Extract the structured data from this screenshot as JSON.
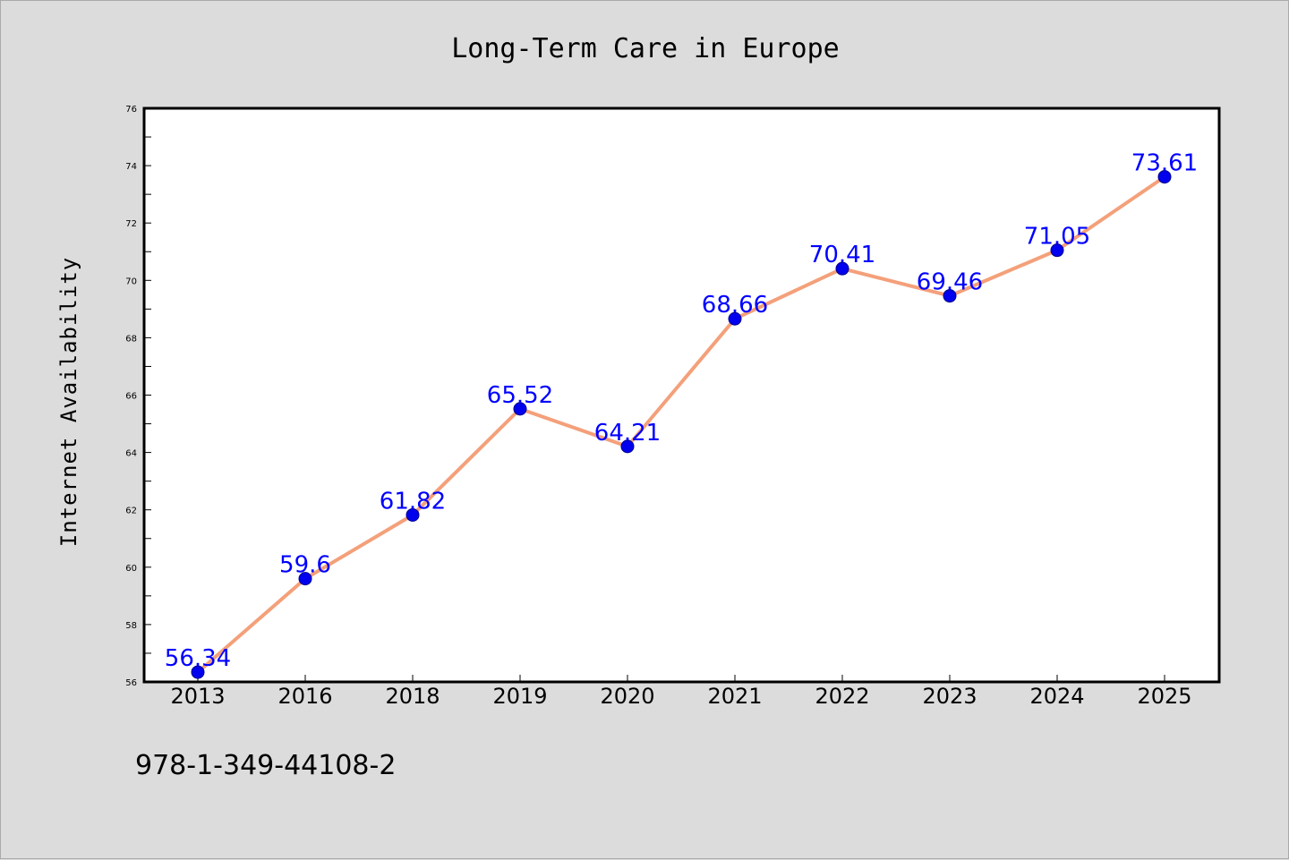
{
  "chart_data": {
    "type": "line",
    "title": "Long-Term Care in Europe",
    "xlabel": "",
    "ylabel": "Internet Availability",
    "categories": [
      "2013",
      "2016",
      "2018",
      "2019",
      "2020",
      "2021",
      "2022",
      "2023",
      "2024",
      "2025"
    ],
    "series": [
      {
        "values": [
          56.34,
          59.6,
          61.82,
          65.52,
          64.21,
          68.66,
          70.41,
          69.46,
          71.05,
          73.61
        ],
        "data_labels": [
          "56.34",
          "59.6",
          "61.82",
          "65.52",
          "64.21",
          "68.66",
          "70.41",
          "69.46",
          "71.05",
          "73.61"
        ]
      }
    ],
    "ylim": [
      56,
      76
    ],
    "yticks": [
      "56",
      "58",
      "60",
      "62",
      "64",
      "66",
      "68",
      "70",
      "72",
      "74",
      "76"
    ],
    "grid": false,
    "legend": "none",
    "colors": {
      "line": "#f4a07a",
      "marker": "#0000ee",
      "label": "#0000ff",
      "plot_background": "#ffffff",
      "page_background": "#dcdcdc"
    }
  },
  "footer_text": "978-1-349-44108-2"
}
